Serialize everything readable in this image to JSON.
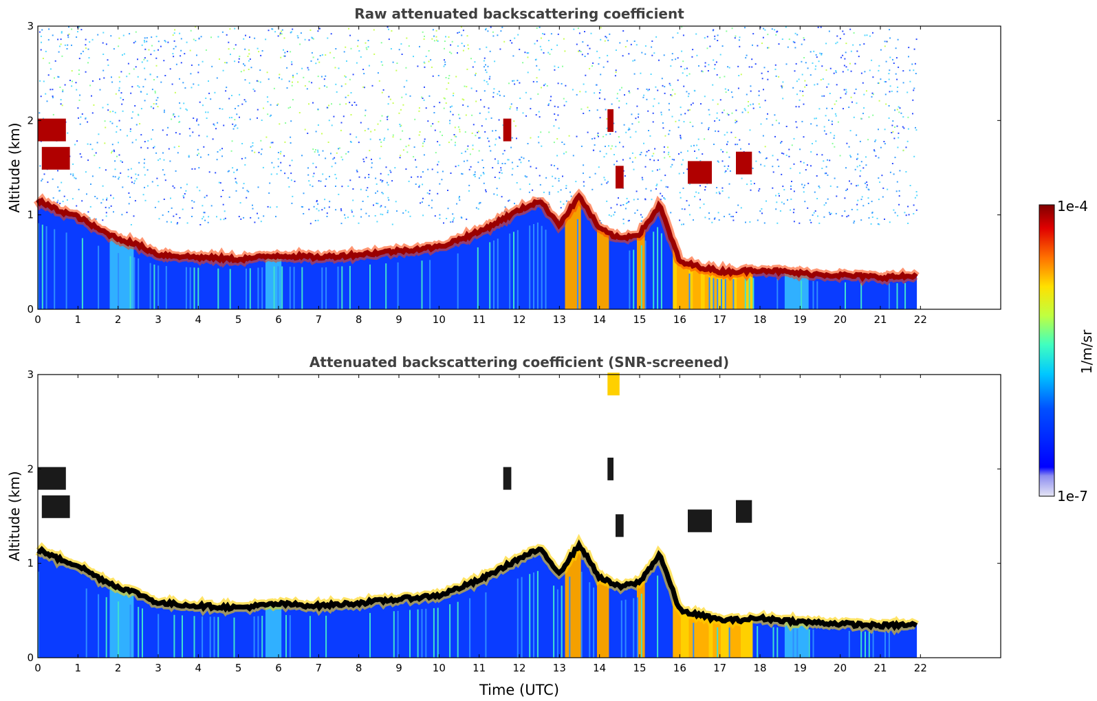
{
  "chart_data": [
    {
      "type": "heatmap",
      "title": "Raw attenuated backscattering coefficient",
      "xlabel": "",
      "ylabel": "Altitude (km)",
      "xlim": [
        0,
        24
      ],
      "ylim": [
        0,
        3
      ],
      "x_ticks": [
        "0",
        "1",
        "2",
        "3",
        "4",
        "5",
        "6",
        "7",
        "8",
        "9",
        "10",
        "11",
        "12",
        "13",
        "14",
        "15",
        "16",
        "17",
        "18",
        "19",
        "20",
        "21",
        "22"
      ],
      "y_ticks": [
        "0",
        "1",
        "2",
        "3"
      ],
      "data_end_time_utc": 21.9,
      "screened": false,
      "boundary_layer_top_km": {
        "time": [
          0,
          0.5,
          1,
          1.5,
          2,
          2.5,
          3,
          4,
          5,
          6,
          7,
          8,
          8.5,
          9,
          10,
          11,
          12,
          12.5,
          13,
          13.5,
          14,
          14.5,
          15,
          15.5,
          16,
          16.5,
          17,
          17.5,
          18,
          19,
          20,
          21,
          21.9
        ],
        "altitude": [
          1.15,
          1.05,
          0.98,
          0.85,
          0.75,
          0.68,
          0.58,
          0.55,
          0.53,
          0.57,
          0.55,
          0.58,
          0.6,
          0.62,
          0.66,
          0.82,
          1.05,
          1.15,
          0.9,
          1.2,
          0.85,
          0.75,
          0.8,
          1.1,
          0.5,
          0.45,
          0.4,
          0.4,
          0.42,
          0.38,
          0.36,
          0.34,
          0.35
        ]
      },
      "cloud_features": [
        {
          "time_start": 0.0,
          "time_end": 0.7,
          "altitude_km": 1.9
        },
        {
          "time_start": 0.1,
          "time_end": 0.8,
          "altitude_km": 1.6
        },
        {
          "time_start": 11.6,
          "time_end": 11.8,
          "altitude_km": 1.9
        },
        {
          "time_start": 14.2,
          "time_end": 14.35,
          "altitude_km": 2.0
        },
        {
          "time_start": 14.4,
          "time_end": 14.6,
          "altitude_km": 1.4
        },
        {
          "time_start": 16.2,
          "time_end": 16.8,
          "altitude_km": 1.45
        },
        {
          "time_start": 17.4,
          "time_end": 17.8,
          "altitude_km": 1.55
        }
      ],
      "colorbar": {
        "label": "1/m/sr",
        "min_label": "1e-7",
        "max_label": "1e-4",
        "scale": "log",
        "colormap": "jet"
      }
    },
    {
      "type": "heatmap",
      "title": "Attenuated backscattering coefficient (SNR-screened)",
      "xlabel": "Time (UTC)",
      "ylabel": "Altitude (km)",
      "xlim": [
        0,
        24
      ],
      "ylim": [
        0,
        3
      ],
      "x_ticks": [
        "0",
        "1",
        "2",
        "3",
        "4",
        "5",
        "6",
        "7",
        "8",
        "9",
        "10",
        "11",
        "12",
        "13",
        "14",
        "15",
        "16",
        "17",
        "18",
        "19",
        "20",
        "21",
        "22"
      ],
      "y_ticks": [
        "0",
        "1",
        "2",
        "3"
      ],
      "data_end_time_utc": 21.9,
      "screened": true,
      "boundary_layer_top_km": {
        "time": [
          0,
          0.5,
          1,
          1.5,
          2,
          2.5,
          3,
          4,
          5,
          6,
          7,
          8,
          8.5,
          9,
          10,
          11,
          12,
          12.5,
          13,
          13.5,
          14,
          14.5,
          15,
          15.5,
          16,
          16.5,
          17,
          17.5,
          18,
          19,
          20,
          21,
          21.9
        ],
        "altitude": [
          1.15,
          1.05,
          0.98,
          0.85,
          0.75,
          0.68,
          0.58,
          0.55,
          0.53,
          0.57,
          0.55,
          0.58,
          0.6,
          0.62,
          0.66,
          0.82,
          1.05,
          1.15,
          0.9,
          1.2,
          0.85,
          0.75,
          0.8,
          1.1,
          0.5,
          0.45,
          0.4,
          0.4,
          0.42,
          0.38,
          0.36,
          0.34,
          0.35
        ]
      },
      "cloud_features": [
        {
          "time_start": 0.0,
          "time_end": 0.7,
          "altitude_km": 1.9
        },
        {
          "time_start": 0.1,
          "time_end": 0.8,
          "altitude_km": 1.6
        },
        {
          "time_start": 11.6,
          "time_end": 11.8,
          "altitude_km": 1.9
        },
        {
          "time_start": 14.2,
          "time_end": 14.35,
          "altitude_km": 2.0
        },
        {
          "time_start": 14.4,
          "time_end": 14.6,
          "altitude_km": 1.4
        },
        {
          "time_start": 14.2,
          "time_end": 14.5,
          "altitude_km": 2.9
        },
        {
          "time_start": 16.2,
          "time_end": 16.8,
          "altitude_km": 1.45
        },
        {
          "time_start": 17.4,
          "time_end": 17.8,
          "altitude_km": 1.55
        }
      ],
      "colorbar": {
        "label": "1/m/sr",
        "min_label": "1e-7",
        "max_label": "1e-4",
        "scale": "log",
        "colormap": "jet"
      }
    }
  ]
}
